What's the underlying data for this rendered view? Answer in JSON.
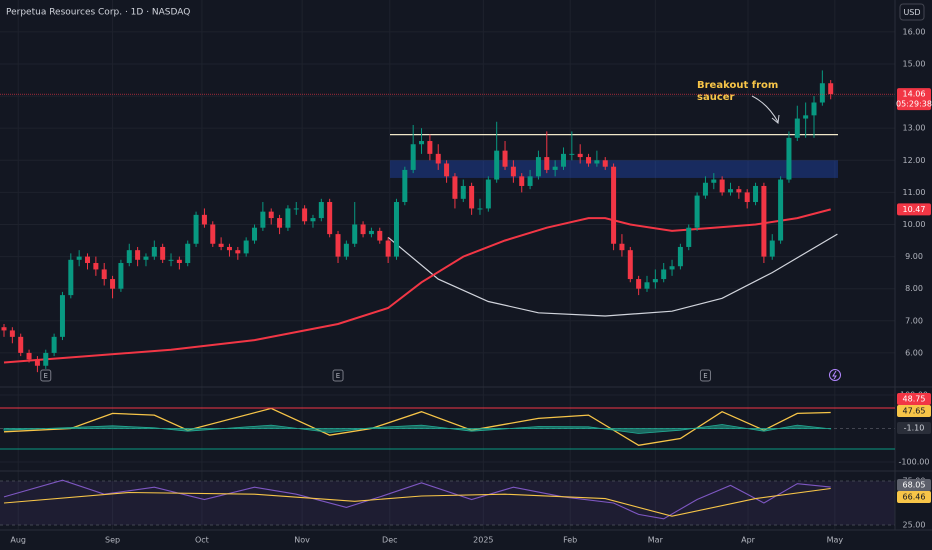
{
  "header": {
    "title": "Perpetua Resources Corp. · 1D · NASDAQ",
    "currency": "USD"
  },
  "chart_data": [
    {
      "type": "candlestick",
      "up_color": "#089981",
      "down_color": "#f23645",
      "ohlc": [
        [
          6.8,
          6.9,
          6.5,
          6.7
        ],
        [
          6.7,
          6.8,
          6.3,
          6.5
        ],
        [
          6.5,
          6.6,
          5.9,
          6.0
        ],
        [
          6.0,
          6.1,
          5.7,
          5.8
        ],
        [
          5.8,
          5.9,
          5.4,
          5.6
        ],
        [
          5.6,
          6.1,
          5.5,
          6.0
        ],
        [
          6.0,
          6.6,
          5.9,
          6.5
        ],
        [
          6.5,
          7.9,
          6.4,
          7.8
        ],
        [
          7.8,
          9.1,
          7.7,
          8.9
        ],
        [
          8.9,
          9.2,
          8.7,
          9.0
        ],
        [
          9.0,
          9.1,
          8.6,
          8.8
        ],
        [
          8.8,
          9.0,
          8.4,
          8.6
        ],
        [
          8.6,
          8.8,
          8.1,
          8.3
        ],
        [
          8.3,
          8.4,
          7.7,
          8.0
        ],
        [
          8.0,
          8.9,
          7.9,
          8.8
        ],
        [
          8.8,
          9.4,
          8.7,
          9.2
        ],
        [
          9.2,
          9.3,
          8.7,
          8.9
        ],
        [
          8.9,
          9.1,
          8.7,
          9.0
        ],
        [
          9.0,
          9.5,
          8.9,
          9.3
        ],
        [
          9.3,
          9.4,
          8.8,
          8.9
        ],
        [
          8.9,
          9.1,
          8.7,
          8.9
        ],
        [
          8.9,
          9.0,
          8.6,
          8.8
        ],
        [
          8.8,
          9.5,
          8.7,
          9.4
        ],
        [
          9.4,
          10.4,
          9.3,
          10.3
        ],
        [
          10.3,
          10.5,
          9.9,
          10.0
        ],
        [
          10.0,
          10.1,
          9.3,
          9.4
        ],
        [
          9.4,
          9.6,
          9.2,
          9.3
        ],
        [
          9.3,
          9.4,
          9.0,
          9.2
        ],
        [
          9.2,
          9.3,
          8.9,
          9.1
        ],
        [
          9.1,
          9.6,
          9.0,
          9.5
        ],
        [
          9.5,
          10.0,
          9.4,
          9.9
        ],
        [
          9.9,
          10.7,
          9.8,
          10.4
        ],
        [
          10.4,
          10.5,
          10.0,
          10.2
        ],
        [
          10.2,
          10.3,
          9.7,
          9.9
        ],
        [
          9.9,
          10.6,
          9.8,
          10.5
        ],
        [
          10.5,
          10.7,
          10.3,
          10.5
        ],
        [
          10.5,
          10.6,
          10.0,
          10.1
        ],
        [
          10.1,
          10.3,
          9.9,
          10.2
        ],
        [
          10.2,
          10.8,
          10.1,
          10.7
        ],
        [
          10.7,
          10.8,
          9.6,
          9.7
        ],
        [
          9.7,
          9.8,
          8.8,
          9.0
        ],
        [
          9.0,
          9.5,
          8.9,
          9.4
        ],
        [
          9.4,
          10.7,
          9.3,
          10.0
        ],
        [
          10.0,
          10.1,
          9.6,
          9.7
        ],
        [
          9.7,
          9.9,
          9.6,
          9.8
        ],
        [
          9.8,
          9.9,
          9.4,
          9.5
        ],
        [
          9.5,
          9.6,
          8.8,
          9.0
        ],
        [
          9.0,
          10.8,
          8.9,
          10.7
        ],
        [
          10.7,
          11.8,
          10.6,
          11.7
        ],
        [
          11.7,
          13.1,
          11.6,
          12.5
        ],
        [
          12.5,
          13.0,
          12.2,
          12.6
        ],
        [
          12.6,
          12.8,
          12.0,
          12.2
        ],
        [
          12.2,
          12.5,
          11.7,
          11.9
        ],
        [
          11.9,
          12.0,
          11.3,
          11.5
        ],
        [
          11.5,
          11.6,
          10.5,
          10.8
        ],
        [
          10.8,
          11.4,
          10.7,
          11.2
        ],
        [
          11.2,
          11.3,
          10.3,
          10.5
        ],
        [
          10.5,
          10.8,
          10.3,
          10.5
        ],
        [
          10.5,
          11.5,
          10.4,
          11.4
        ],
        [
          11.4,
          13.2,
          11.3,
          12.3
        ],
        [
          12.3,
          12.6,
          11.7,
          11.8
        ],
        [
          11.8,
          12.0,
          11.3,
          11.5
        ],
        [
          11.5,
          11.6,
          11.0,
          11.2
        ],
        [
          11.2,
          11.7,
          11.1,
          11.5
        ],
        [
          11.5,
          12.3,
          11.4,
          12.1
        ],
        [
          12.1,
          12.9,
          11.6,
          11.7
        ],
        [
          11.7,
          12.0,
          11.5,
          11.8
        ],
        [
          11.8,
          12.4,
          11.7,
          12.2
        ],
        [
          12.2,
          12.9,
          12.0,
          12.2
        ],
        [
          12.2,
          12.5,
          11.9,
          12.1
        ],
        [
          12.1,
          12.2,
          11.8,
          11.9
        ],
        [
          11.9,
          12.3,
          11.8,
          12.0
        ],
        [
          12.0,
          12.1,
          11.7,
          11.8
        ],
        [
          11.8,
          11.9,
          9.2,
          9.4
        ],
        [
          9.4,
          9.7,
          9.0,
          9.2
        ],
        [
          9.2,
          9.3,
          8.2,
          8.3
        ],
        [
          8.3,
          8.4,
          7.8,
          8.0
        ],
        [
          8.0,
          8.4,
          7.9,
          8.2
        ],
        [
          8.2,
          8.6,
          8.0,
          8.3
        ],
        [
          8.3,
          8.8,
          8.2,
          8.6
        ],
        [
          8.6,
          8.9,
          8.4,
          8.7
        ],
        [
          8.7,
          9.4,
          8.6,
          9.3
        ],
        [
          9.3,
          10.0,
          9.2,
          9.9
        ],
        [
          9.9,
          11.0,
          9.8,
          10.9
        ],
        [
          10.9,
          11.5,
          10.8,
          11.3
        ],
        [
          11.3,
          11.6,
          11.1,
          11.4
        ],
        [
          11.4,
          11.5,
          10.9,
          11.0
        ],
        [
          11.0,
          11.3,
          10.9,
          11.1
        ],
        [
          11.1,
          11.2,
          10.8,
          11.0
        ],
        [
          11.0,
          11.1,
          10.5,
          10.7
        ],
        [
          10.7,
          11.3,
          10.6,
          11.2
        ],
        [
          11.2,
          11.3,
          8.8,
          9.0
        ],
        [
          9.0,
          9.7,
          8.9,
          9.5
        ],
        [
          9.5,
          11.5,
          9.4,
          11.4
        ],
        [
          11.4,
          12.9,
          11.3,
          12.7
        ],
        [
          12.7,
          13.7,
          12.6,
          13.3
        ],
        [
          13.3,
          13.8,
          12.7,
          13.4
        ],
        [
          13.4,
          14.0,
          12.7,
          13.8
        ],
        [
          13.8,
          14.8,
          13.7,
          14.4
        ],
        [
          14.4,
          14.5,
          13.9,
          14.06
        ]
      ],
      "countdown": "05:29:38",
      "ma": {
        "color": "#f23645",
        "x": [
          0,
          10,
          20,
          30,
          40,
          46,
          50,
          55,
          60,
          65,
          70,
          72,
          75,
          80,
          85,
          90,
          95,
          99
        ],
        "values": [
          5.7,
          5.9,
          6.1,
          6.4,
          6.9,
          7.4,
          8.2,
          9.0,
          9.5,
          9.9,
          10.2,
          10.2,
          10.0,
          9.8,
          9.9,
          10.0,
          10.2,
          10.47
        ]
      },
      "saucer": {
        "x": [
          46,
          52,
          58,
          64,
          72,
          80,
          86,
          92,
          99.8
        ],
        "values": [
          9.6,
          8.3,
          7.6,
          7.25,
          7.15,
          7.3,
          7.7,
          8.5,
          9.7
        ]
      },
      "resistance": 12.8,
      "zone": [
        11.45,
        12.0
      ],
      "annotation": [
        "Breakout from",
        "saucer"
      ],
      "earnings": {
        "x": [
          5,
          40,
          84
        ],
        "label": "E"
      },
      "xlim": [
        -0.48,
        106.7
      ],
      "xticks": [
        {
          "value": 1.7,
          "label": "Aug"
        },
        {
          "value": 13,
          "label": "Sep"
        },
        {
          "value": 23.7,
          "label": "Oct"
        },
        {
          "value": 35.7,
          "label": "Nov"
        },
        {
          "value": 46.2,
          "label": "Dec"
        },
        {
          "value": 57.4,
          "label": "2025"
        },
        {
          "value": 67.8,
          "label": "Feb"
        },
        {
          "value": 78,
          "label": "Mar"
        },
        {
          "value": 89.1,
          "label": "Apr"
        },
        {
          "value": 99.5,
          "label": "May"
        }
      ],
      "ylim": [
        5.0,
        16.37
      ],
      "yticks": [
        {
          "value": 16,
          "label": "16.00"
        },
        {
          "value": 15,
          "label": "15.00"
        },
        {
          "value": 14,
          "label": "14.00"
        },
        {
          "value": 13,
          "label": "13.00"
        },
        {
          "value": 12,
          "label": "12.00"
        },
        {
          "value": 11,
          "label": "11.00"
        },
        {
          "value": 10,
          "label": "10.00"
        },
        {
          "value": 9,
          "label": "9.00"
        },
        {
          "value": 8,
          "label": "8.00"
        },
        {
          "value": 7,
          "label": "7.00"
        },
        {
          "value": 6,
          "label": "6.00"
        }
      ]
    },
    {
      "type": "oscillator",
      "x": [
        0,
        8,
        13,
        18,
        22,
        32,
        39,
        44,
        50,
        56,
        64,
        70,
        76,
        81,
        86,
        91,
        95,
        99
      ],
      "series": [
        {
          "color": "#f7c548",
          "values": [
            -10,
            0,
            45,
            40,
            -5,
            60,
            -20,
            0,
            50,
            -5,
            30,
            40,
            -50,
            -30,
            50,
            -5,
            45,
            47.65
          ]
        },
        {
          "color": "#22ab94",
          "style": "area",
          "values": [
            -5,
            3,
            8,
            2,
            -8,
            10,
            -12,
            2,
            10,
            -8,
            6,
            5,
            -15,
            -5,
            12,
            -8,
            10,
            -1.1
          ],
          "value_labels": [
            null,
            null,
            null,
            null,
            null,
            null,
            null,
            null,
            null,
            null,
            null,
            null,
            null,
            null,
            null,
            null,
            null,
            "-1.10"
          ]
        }
      ],
      "badge": {
        "value": 48.75,
        "color": "#f23645"
      },
      "ylim": [
        -117.9,
        114.9
      ],
      "yticks": [
        {
          "value": 100,
          "label": "100.00"
        },
        {
          "value": -100,
          "label": "-100.00"
        }
      ]
    },
    {
      "type": "rsi",
      "x": [
        0,
        7,
        12,
        18,
        24,
        30,
        35,
        41,
        45,
        50,
        56,
        61,
        67,
        73,
        76,
        79,
        83,
        87,
        91,
        95,
        99
      ],
      "series": [
        {
          "color": "#7e57c2",
          "values": [
            57,
            76,
            60,
            68,
            54,
            68,
            60,
            45,
            57,
            73,
            54,
            68,
            57,
            50,
            37,
            32,
            54,
            70,
            50,
            72,
            68.05
          ]
        },
        {
          "color": "#f7c548",
          "x": [
            0,
            15,
            30,
            42,
            50,
            60,
            72,
            80,
            90,
            99
          ],
          "values": [
            50,
            62,
            60,
            52,
            58,
            60,
            55,
            35,
            55,
            66.46
          ]
        }
      ],
      "ylim": [
        19.3,
        83
      ],
      "yticks": [
        {
          "value": 75,
          "label": "75.00"
        },
        {
          "value": 25,
          "label": "25.00"
        }
      ]
    }
  ]
}
